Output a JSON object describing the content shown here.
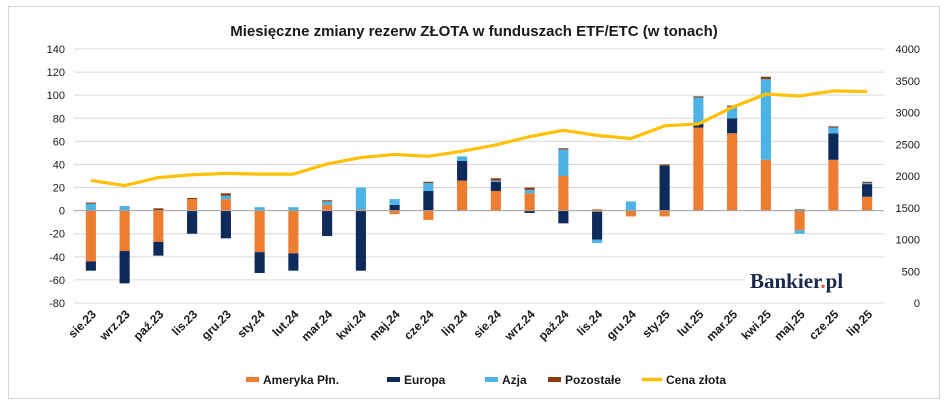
{
  "chart_data": {
    "type": "bar",
    "title": "Miesięczne zmiany rezerw ZŁOTA w funduszach ETF/ETC (w tonach)",
    "categories": [
      "sie.23",
      "wrz.23",
      "paź.23",
      "lis.23",
      "gru.23",
      "sty.24",
      "lut.24",
      "mar.24",
      "kwi.24",
      "maj.24",
      "cze.24",
      "lip.24",
      "sie.24",
      "wrz.24",
      "paź.24",
      "lis.24",
      "gru.24",
      "sty.25",
      "lut.25",
      "mar.25",
      "kwi.25",
      "maj.25",
      "cze.25",
      "lip.25"
    ],
    "stacked": true,
    "series": [
      {
        "name": "Ameryka Płn.",
        "kind": "bar",
        "color": "#ed7d31",
        "values": [
          -44,
          -35,
          -27,
          10,
          10,
          -36,
          -37,
          5,
          1,
          -3,
          -8,
          26,
          17,
          15,
          30,
          -1,
          -5,
          -5,
          72,
          67,
          44,
          -17,
          44,
          12
        ]
      },
      {
        "name": "Europa",
        "kind": "bar",
        "color": "#0e2a5a",
        "values": [
          -8,
          -28,
          -12,
          -20,
          -24,
          -18,
          -15,
          -22,
          -52,
          5,
          17,
          17,
          8,
          -2,
          -11,
          -24,
          0,
          39,
          3,
          13,
          0,
          1,
          23,
          11
        ]
      },
      {
        "name": "Azja",
        "kind": "bar",
        "color": "#4db3e6",
        "values": [
          6,
          4,
          0,
          0,
          3,
          3,
          3,
          3,
          19,
          5,
          7,
          4,
          1,
          3,
          23,
          -3,
          8,
          0,
          23,
          10,
          70,
          -3,
          5,
          1
        ]
      },
      {
        "name": "Pozostałe",
        "kind": "bar",
        "color": "#8b3a0e",
        "values": [
          1,
          0,
          2,
          1,
          2,
          0,
          0,
          1,
          0,
          0,
          1,
          0,
          2,
          2,
          1,
          1,
          0,
          1,
          1,
          1,
          2,
          0,
          1,
          1
        ]
      },
      {
        "name": "Cena złota",
        "kind": "line",
        "axis": "right",
        "color": "#ffc000",
        "values": [
          1930,
          1850,
          1975,
          2020,
          2040,
          2030,
          2030,
          2190,
          2290,
          2340,
          2310,
          2390,
          2490,
          2620,
          2720,
          2640,
          2590,
          2790,
          2820,
          3080,
          3290,
          3260,
          3340,
          3330
        ]
      }
    ],
    "ylim": [
      -80,
      140
    ],
    "yticks": [
      -80,
      -60,
      -40,
      -20,
      0,
      20,
      40,
      60,
      80,
      100,
      120,
      140
    ],
    "y2lim": [
      0,
      4000
    ],
    "y2ticks": [
      0,
      500,
      1000,
      1500,
      2000,
      2500,
      3000,
      3500,
      4000
    ],
    "grid": true,
    "legend_position": "bottom"
  },
  "logo": {
    "text": "Bankier.pl",
    "colors": {
      "text": "#1b2a4a",
      "dot": "#e8552d"
    }
  }
}
